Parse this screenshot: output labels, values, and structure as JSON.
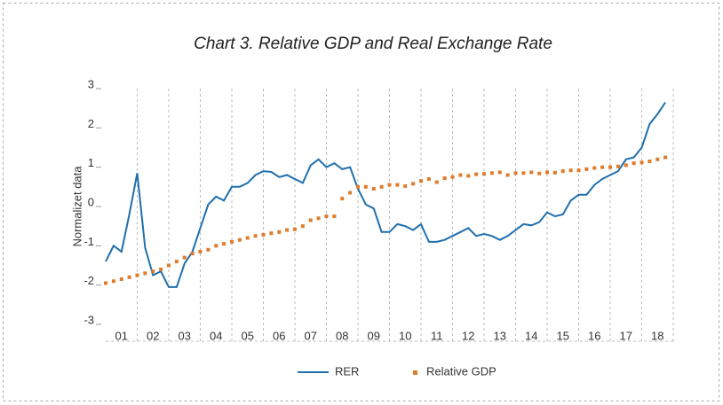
{
  "chart_data": {
    "type": "line",
    "title": "Chart 3. Relative GDP and Real Exchange Rate",
    "y_label": "Normalizet data",
    "x": [
      2001,
      2001.25,
      2001.5,
      2001.75,
      2002,
      2002.25,
      2002.5,
      2002.75,
      2003,
      2003.25,
      2003.5,
      2003.75,
      2004,
      2004.25,
      2004.5,
      2004.75,
      2005,
      2005.25,
      2005.5,
      2005.75,
      2006,
      2006.25,
      2006.5,
      2006.75,
      2007,
      2007.25,
      2007.5,
      2007.75,
      2008,
      2008.25,
      2008.5,
      2008.75,
      2009,
      2009.25,
      2009.5,
      2009.75,
      2010,
      2010.25,
      2010.5,
      2010.75,
      2011,
      2011.25,
      2011.5,
      2011.75,
      2012,
      2012.25,
      2012.5,
      2012.75,
      2013,
      2013.25,
      2013.5,
      2013.75,
      2014,
      2014.25,
      2014.5,
      2014.75,
      2015,
      2015.25,
      2015.5,
      2015.75,
      2016,
      2016.25,
      2016.5,
      2016.75,
      2017,
      2017.25,
      2017.5,
      2017.75,
      2018,
      2018.25,
      2018.5,
      2018.75
    ],
    "xlim": [
      2001,
      2019
    ],
    "xticks": [
      {
        "value": 2001.5,
        "label": "01"
      },
      {
        "value": 2002.5,
        "label": "02"
      },
      {
        "value": 2003.5,
        "label": "03"
      },
      {
        "value": 2004.5,
        "label": "04"
      },
      {
        "value": 2005.5,
        "label": "05"
      },
      {
        "value": 2006.5,
        "label": "06"
      },
      {
        "value": 2007.5,
        "label": "07"
      },
      {
        "value": 2008.5,
        "label": "08"
      },
      {
        "value": 2009.5,
        "label": "09"
      },
      {
        "value": 2010.5,
        "label": "10"
      },
      {
        "value": 2011.5,
        "label": "11"
      },
      {
        "value": 2012.5,
        "label": "12"
      },
      {
        "value": 2013.5,
        "label": "13"
      },
      {
        "value": 2014.5,
        "label": "14"
      },
      {
        "value": 2015.5,
        "label": "15"
      },
      {
        "value": 2016.5,
        "label": "16"
      },
      {
        "value": 2017.5,
        "label": "17"
      },
      {
        "value": 2018.5,
        "label": "18"
      }
    ],
    "ylim": [
      -3,
      3
    ],
    "yticks": [
      -3,
      -2,
      -1,
      0,
      1,
      2,
      3
    ],
    "grid": true,
    "legend": "bottom",
    "series": [
      {
        "name": "RER",
        "color": "#1f6fad",
        "style": "line",
        "values": [
          -1.4,
          -1.0,
          -1.15,
          -0.2,
          0.85,
          -1.05,
          -1.75,
          -1.65,
          -2.05,
          -2.05,
          -1.45,
          -1.15,
          -0.55,
          0.05,
          0.25,
          0.15,
          0.5,
          0.5,
          0.6,
          0.8,
          0.9,
          0.88,
          0.75,
          0.8,
          0.7,
          0.6,
          1.05,
          1.2,
          1.0,
          1.1,
          0.95,
          1.0,
          0.45,
          0.05,
          -0.05,
          -0.65,
          -0.65,
          -0.45,
          -0.5,
          -0.6,
          -0.45,
          -0.9,
          -0.9,
          -0.85,
          -0.75,
          -0.65,
          -0.55,
          -0.75,
          -0.7,
          -0.75,
          -0.85,
          -0.75,
          -0.6,
          -0.45,
          -0.48,
          -0.4,
          -0.15,
          -0.25,
          -0.2,
          0.15,
          0.3,
          0.3,
          0.55,
          0.7,
          0.8,
          0.9,
          1.2,
          1.25,
          1.5,
          2.1,
          2.35,
          2.65
        ]
      },
      {
        "name": "Relative GDP",
        "color": "#e07b2a",
        "style": "dots",
        "values": [
          -1.95,
          -1.9,
          -1.85,
          -1.8,
          -1.75,
          -1.7,
          -1.65,
          -1.6,
          -1.5,
          -1.4,
          -1.3,
          -1.2,
          -1.15,
          -1.1,
          -1.0,
          -0.95,
          -0.9,
          -0.85,
          -0.8,
          -0.75,
          -0.72,
          -0.68,
          -0.65,
          -0.6,
          -0.58,
          -0.5,
          -0.35,
          -0.3,
          -0.25,
          -0.25,
          0.2,
          0.35,
          0.5,
          0.5,
          0.45,
          0.5,
          0.55,
          0.55,
          0.52,
          0.58,
          0.65,
          0.7,
          0.62,
          0.72,
          0.75,
          0.8,
          0.78,
          0.82,
          0.83,
          0.85,
          0.87,
          0.8,
          0.85,
          0.85,
          0.87,
          0.84,
          0.87,
          0.86,
          0.9,
          0.92,
          0.92,
          0.95,
          0.98,
          1.0,
          1.0,
          1.02,
          1.05,
          1.1,
          1.12,
          1.15,
          1.2,
          1.25
        ]
      }
    ]
  }
}
